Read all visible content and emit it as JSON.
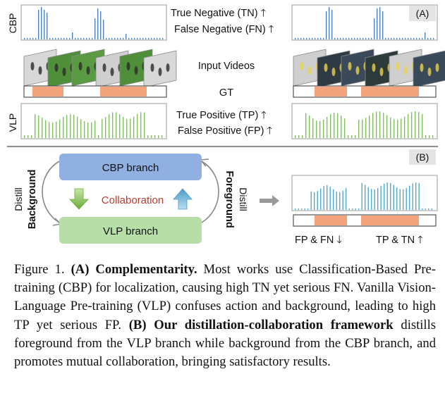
{
  "panel_a": {
    "tag": "(A)",
    "cbp_label": "CBP",
    "vlp_label": "VLP",
    "cbp_line1": "True Negative (TN)",
    "cbp_line2": "False Negative (FN)",
    "middle_label": "Input Videos",
    "gt_label": "GT",
    "vlp_line1": "True Positive (TP)",
    "vlp_line2": "False Positive (FP)",
    "arrow_up": "🡑"
  },
  "panel_b": {
    "tag": "(B)",
    "cbp_branch": "CBP branch",
    "vlp_branch": "VLP branch",
    "collaboration": "Collaboration",
    "distill": "Distill",
    "background": "Background",
    "foreground": "Foreground",
    "fp_fn": "FP & FN",
    "tp_tn": "TP & TN"
  },
  "caption": {
    "fig": "Figure 1.",
    "a_label": "(A) Complementarity.",
    "a_text": " Most works use Classification-Based Pre-training (CBP) for localization, causing high TN yet serious FN. Vanilla Vision-Language Pre-training (VLP) confuses action and background, leading to high TP yet serious FP. ",
    "b_label": "(B) Our distillation-collaboration framework",
    "b_text": " distills foreground from the VLP branch while background from the CBP branch, and promotes mutual collaboration, bringing satisfactory results."
  },
  "colors": {
    "cbp_bars": "#4f7fc4",
    "vlp_bars": "#7cc45a",
    "result_bars": "#4fa8cf",
    "gt_segment": "#f4a47c",
    "cbp_box": "#8fb0e0",
    "vlp_box": "#b8dea8",
    "collab_text": "#c0392b"
  }
}
